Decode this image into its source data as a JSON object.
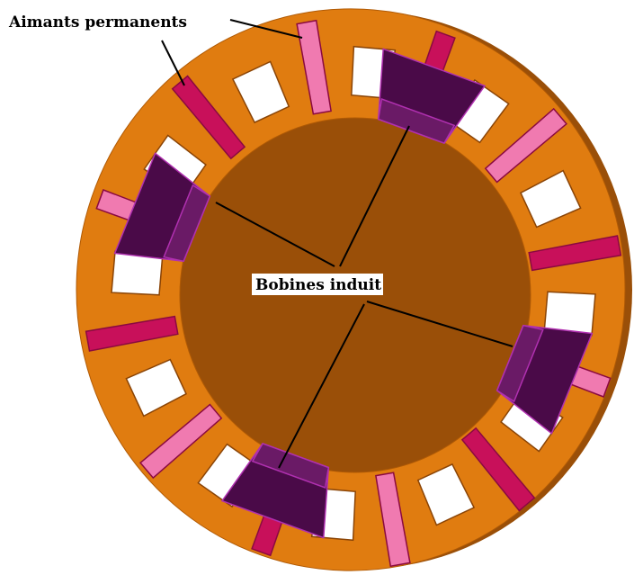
{
  "labels": {
    "magnets": "Aimants permanents",
    "coils": "Bobines induit"
  }
}
